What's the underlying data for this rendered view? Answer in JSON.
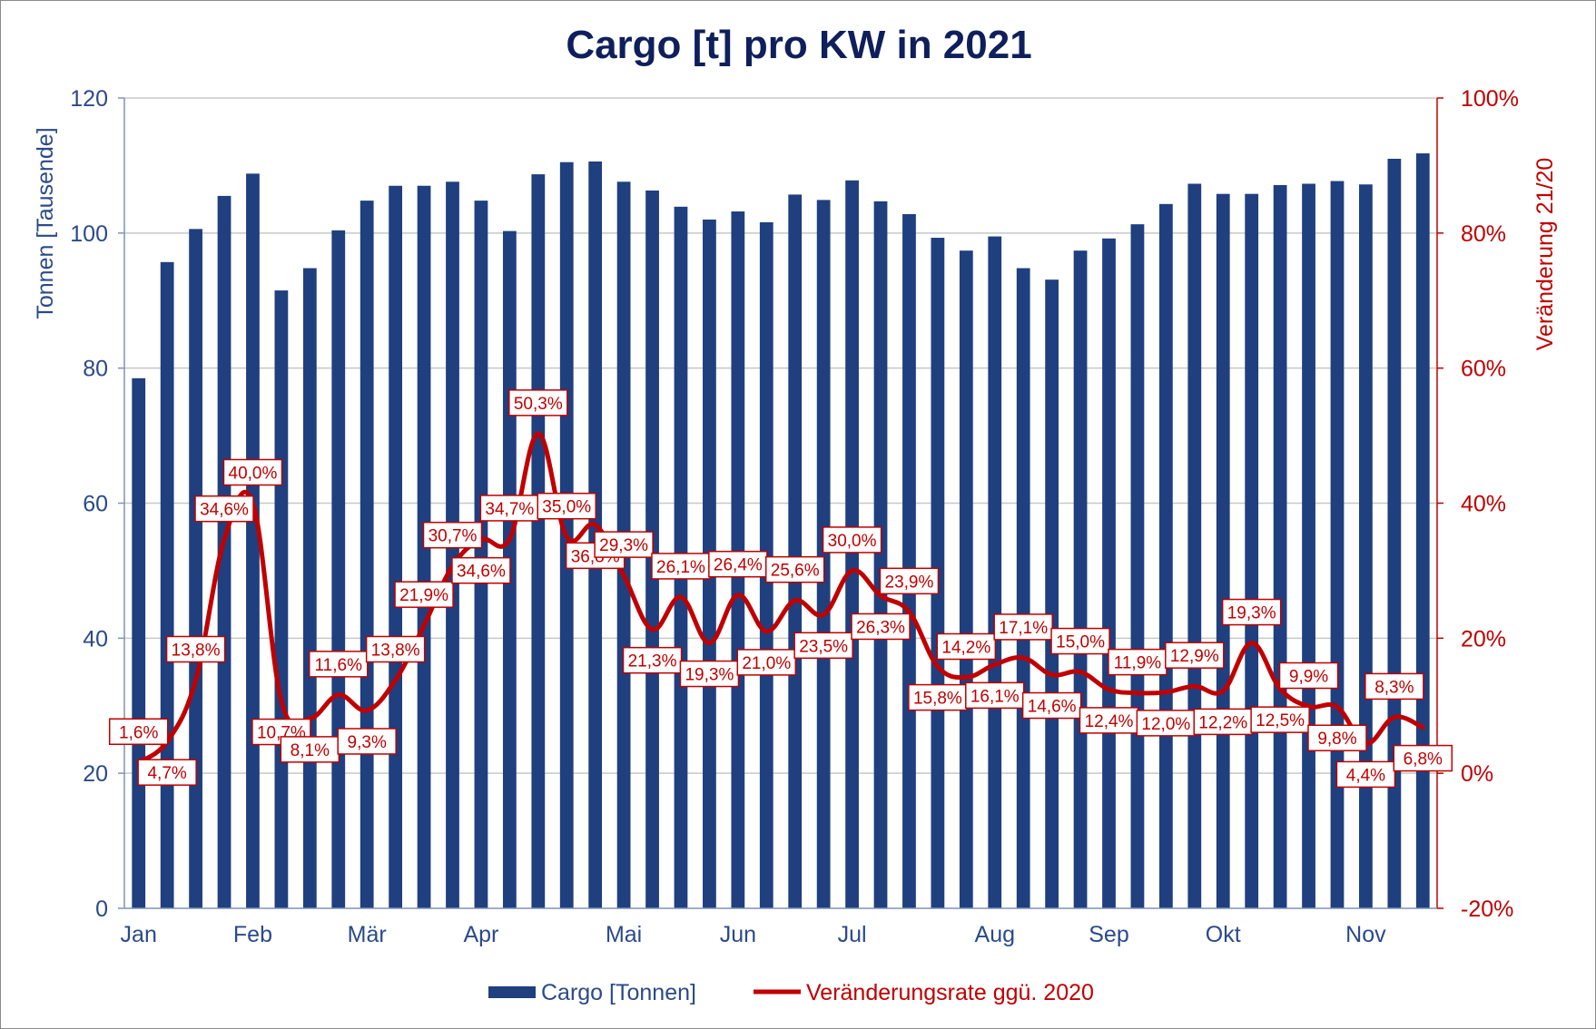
{
  "chart_data": {
    "type": "bar+line",
    "title": "Cargo [t] pro KW in 2021",
    "ylabel_left": "Tonnen [Tausende]",
    "ylabel_right": "Veränderung 21/20",
    "ylim_left": [
      0,
      120
    ],
    "yticks_left": [
      "0",
      "20",
      "40",
      "60",
      "80",
      "100",
      "120"
    ],
    "ylim_right": [
      -20,
      100
    ],
    "yticks_right": [
      "-20%",
      "0%",
      "20%",
      "40%",
      "60%",
      "80%",
      "100%"
    ],
    "months": [
      {
        "label": "Jan",
        "week": 1
      },
      {
        "label": "Feb",
        "week": 5
      },
      {
        "label": "Mär",
        "week": 9
      },
      {
        "label": "Apr",
        "week": 13
      },
      {
        "label": "Mai",
        "week": 18
      },
      {
        "label": "Jun",
        "week": 22
      },
      {
        "label": "Jul",
        "week": 26
      },
      {
        "label": "Aug",
        "week": 31
      },
      {
        "label": "Sep",
        "week": 35
      },
      {
        "label": "Okt",
        "week": 39
      },
      {
        "label": "Nov",
        "week": 44
      }
    ],
    "series": [
      {
        "name": "Cargo [Tonnen]",
        "type": "bar",
        "color": "#1f3f7f",
        "values": [
          78.5,
          95.7,
          100.6,
          105.5,
          108.8,
          91.5,
          94.8,
          100.4,
          104.8,
          107.0,
          107.0,
          107.6,
          104.8,
          100.3,
          108.7,
          110.5,
          110.6,
          107.6,
          106.3,
          103.9,
          102.0,
          103.2,
          101.6,
          105.7,
          104.9,
          107.8,
          104.7,
          102.8,
          99.3,
          97.4,
          99.5,
          94.8,
          93.1,
          97.4,
          99.2,
          101.3,
          104.3,
          107.3,
          105.8,
          105.8,
          107.1,
          107.3,
          107.7,
          107.2,
          111.0,
          111.8
        ]
      },
      {
        "name": "Veränderungsrate ggü. 2020",
        "type": "line",
        "color": "#c00000",
        "values": [
          1.6,
          4.7,
          13.8,
          34.6,
          40.0,
          10.7,
          8.1,
          11.6,
          9.3,
          13.8,
          21.9,
          30.7,
          34.6,
          34.7,
          50.3,
          35.0,
          36.8,
          29.3,
          21.3,
          26.1,
          19.3,
          26.4,
          21.0,
          25.6,
          23.5,
          30.0,
          26.3,
          23.9,
          15.8,
          14.2,
          16.1,
          17.1,
          14.6,
          15.0,
          12.4,
          11.9,
          12.0,
          12.9,
          12.2,
          19.3,
          12.5,
          9.9,
          9.8,
          4.4,
          8.3,
          6.8
        ],
        "labels": [
          "1,6%",
          "4,7%",
          "13,8%",
          "34,6%",
          "40,0%",
          "10,7%",
          "8,1%",
          "11,6%",
          "9,3%",
          "13,8%",
          "21,9%",
          "30,7%",
          "34,6%",
          "34,7%",
          "50,3%",
          "35,0%",
          "36,8%",
          "29,3%",
          "21,3%",
          "26,1%",
          "19,3%",
          "26,4%",
          "21,0%",
          "25,6%",
          "23,5%",
          "30,0%",
          "26,3%",
          "23,9%",
          "15,8%",
          "14,2%",
          "16,1%",
          "17,1%",
          "14,6%",
          "15,0%",
          "12,4%",
          "11,9%",
          "12,0%",
          "12,9%",
          "12,2%",
          "19,3%",
          "12,5%",
          "9,9%",
          "9,8%",
          "4,4%",
          "8,3%",
          "6,8%"
        ],
        "label_side": [
          "up",
          "down",
          "up",
          "up",
          "up",
          "down",
          "down",
          "up",
          "down",
          "up",
          "up",
          "up",
          "down",
          "up",
          "up",
          "up",
          "down",
          "up",
          "down",
          "up",
          "down",
          "up",
          "down",
          "up",
          "down",
          "up",
          "down",
          "up",
          "down",
          "up",
          "down",
          "up",
          "down",
          "up",
          "down",
          "up",
          "down",
          "up",
          "down",
          "up",
          "down",
          "up",
          "down",
          "down",
          "up",
          "down"
        ]
      }
    ],
    "grid": "horizontal",
    "legend_position": "bottom-center",
    "legend": [
      "Cargo [Tonnen]",
      "Veränderungsrate ggü. 2020"
    ]
  }
}
